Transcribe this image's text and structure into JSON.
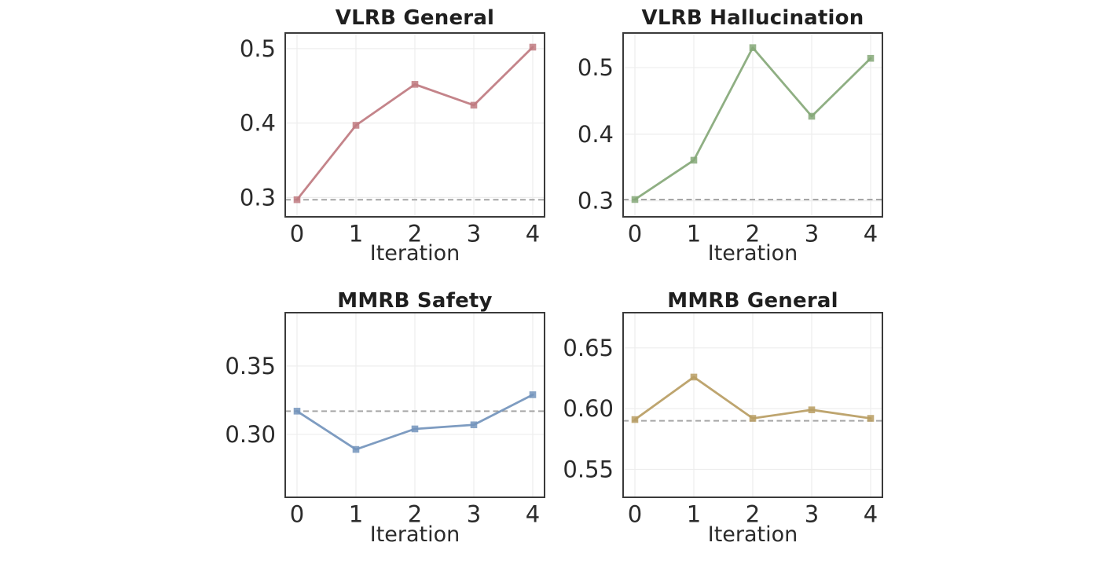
{
  "figure": {
    "background": "#ffffff",
    "axis_color": "#3a3a3a",
    "grid_color": "#ededed",
    "tick_color": "#2b2b2b",
    "title_color": "#1f1f1f"
  },
  "chart_data": [
    {
      "type": "line",
      "title": "VLRB General",
      "xlabel": "Iteration",
      "x": [
        0,
        1,
        2,
        3,
        4
      ],
      "xtick_labels": [
        "0",
        "1",
        "2",
        "3",
        "4"
      ],
      "values": [
        0.297,
        0.397,
        0.452,
        0.424,
        0.502
      ],
      "baseline": 0.297,
      "baseline_style": "dashed",
      "baseline_color": "#a6a6a6",
      "line_color": "#bf7a80",
      "marker": "square",
      "ytick_values": [
        0.3,
        0.4,
        0.5
      ],
      "ytick_labels": [
        "0.3",
        "0.4",
        "0.5"
      ],
      "ylim": [
        0.274,
        0.521
      ],
      "xlim": [
        -0.2,
        4.2
      ],
      "grid": true,
      "legend": "none"
    },
    {
      "type": "line",
      "title": "VLRB Hallucination",
      "xlabel": "Iteration",
      "x": [
        0,
        1,
        2,
        3,
        4
      ],
      "xtick_labels": [
        "0",
        "1",
        "2",
        "3",
        "4"
      ],
      "values": [
        0.302,
        0.361,
        0.53,
        0.427,
        0.514
      ],
      "baseline": 0.302,
      "baseline_style": "dashed",
      "baseline_color": "#a6a6a6",
      "line_color": "#85a878",
      "marker": "square",
      "ytick_values": [
        0.3,
        0.4,
        0.5
      ],
      "ytick_labels": [
        "0.3",
        "0.4",
        "0.5"
      ],
      "ylim": [
        0.276,
        0.552
      ],
      "xlim": [
        -0.2,
        4.2
      ],
      "grid": true,
      "legend": "none"
    },
    {
      "type": "line",
      "title": "MMRB Safety",
      "xlabel": "Iteration",
      "x": [
        0,
        1,
        2,
        3,
        4
      ],
      "xtick_labels": [
        "0",
        "1",
        "2",
        "3",
        "4"
      ],
      "values": [
        0.317,
        0.289,
        0.304,
        0.307,
        0.329
      ],
      "baseline": 0.317,
      "baseline_style": "dashed",
      "baseline_color": "#a6a6a6",
      "line_color": "#7394bc",
      "marker": "square",
      "ytick_values": [
        0.3,
        0.35
      ],
      "ytick_labels": [
        "0.30",
        "0.35"
      ],
      "ylim": [
        0.254,
        0.389
      ],
      "xlim": [
        -0.2,
        4.2
      ],
      "grid": true,
      "legend": "none"
    },
    {
      "type": "line",
      "title": "MMRB General",
      "xlabel": "Iteration",
      "x": [
        0,
        1,
        2,
        3,
        4
      ],
      "xtick_labels": [
        "0",
        "1",
        "2",
        "3",
        "4"
      ],
      "values": [
        0.591,
        0.626,
        0.592,
        0.599,
        0.592
      ],
      "baseline": 0.59,
      "baseline_style": "dashed",
      "baseline_color": "#a6a6a6",
      "line_color": "#b89d63",
      "marker": "square",
      "ytick_values": [
        0.55,
        0.6,
        0.65
      ],
      "ytick_labels": [
        "0.55",
        "0.60",
        "0.65"
      ],
      "ylim": [
        0.527,
        0.679
      ],
      "xlim": [
        -0.2,
        4.2
      ],
      "grid": true,
      "legend": "none"
    }
  ]
}
